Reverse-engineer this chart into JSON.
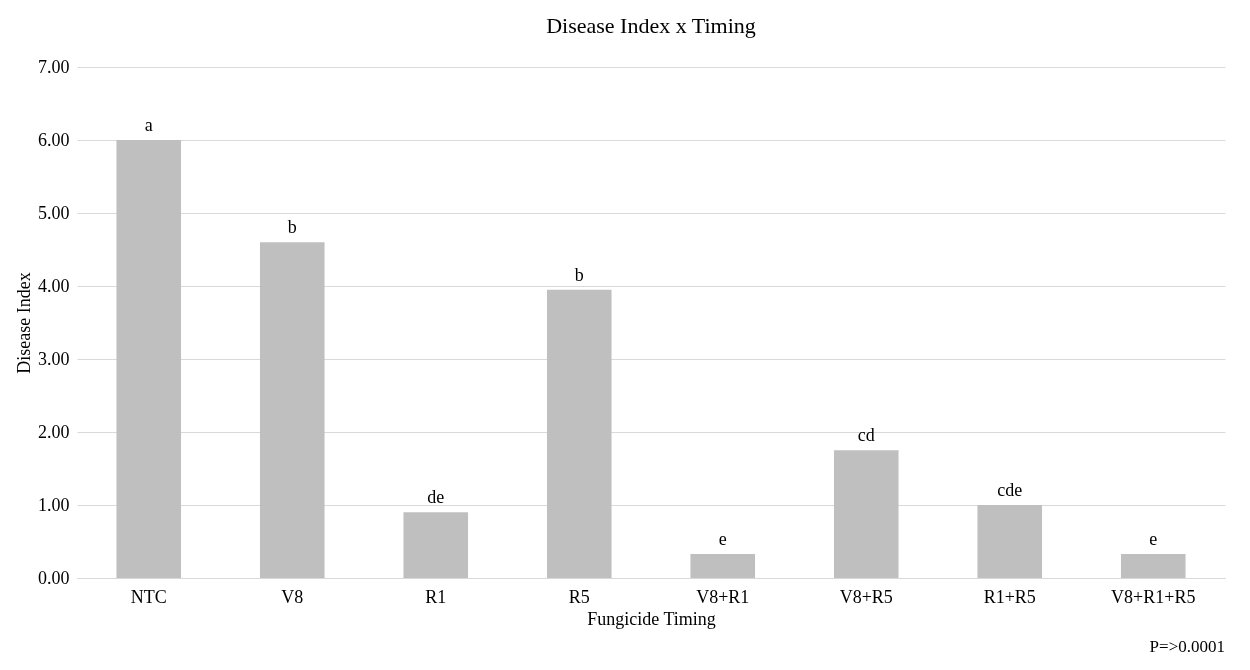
{
  "chart_data": {
    "type": "bar",
    "title": "Disease Index x Timing",
    "xlabel": "Fungicide Timing",
    "ylabel": "Disease Index",
    "categories": [
      "NTC",
      "V8",
      "R1",
      "R5",
      "V8+R1",
      "V8+R5",
      "R1+R5",
      "V8+R1+R5"
    ],
    "values": [
      6.0,
      4.6,
      0.9,
      3.95,
      0.33,
      1.75,
      1.0,
      0.33
    ],
    "value_labels": [
      "a",
      "b",
      "de",
      "b",
      "e",
      "cd",
      "cde",
      "e"
    ],
    "color": "#bfbfbf",
    "ylim": [
      0,
      7
    ],
    "yticks": [
      {
        "value": 0,
        "label": "0.00"
      },
      {
        "value": 1,
        "label": "1.00"
      },
      {
        "value": 2,
        "label": "2.00"
      },
      {
        "value": 3,
        "label": "3.00"
      },
      {
        "value": 4,
        "label": "4.00"
      },
      {
        "value": 5,
        "label": "5.00"
      },
      {
        "value": 6,
        "label": "6.00"
      },
      {
        "value": 7,
        "label": "7.00"
      }
    ],
    "grid": "y",
    "annotations": [
      "P=>0.0001"
    ]
  }
}
